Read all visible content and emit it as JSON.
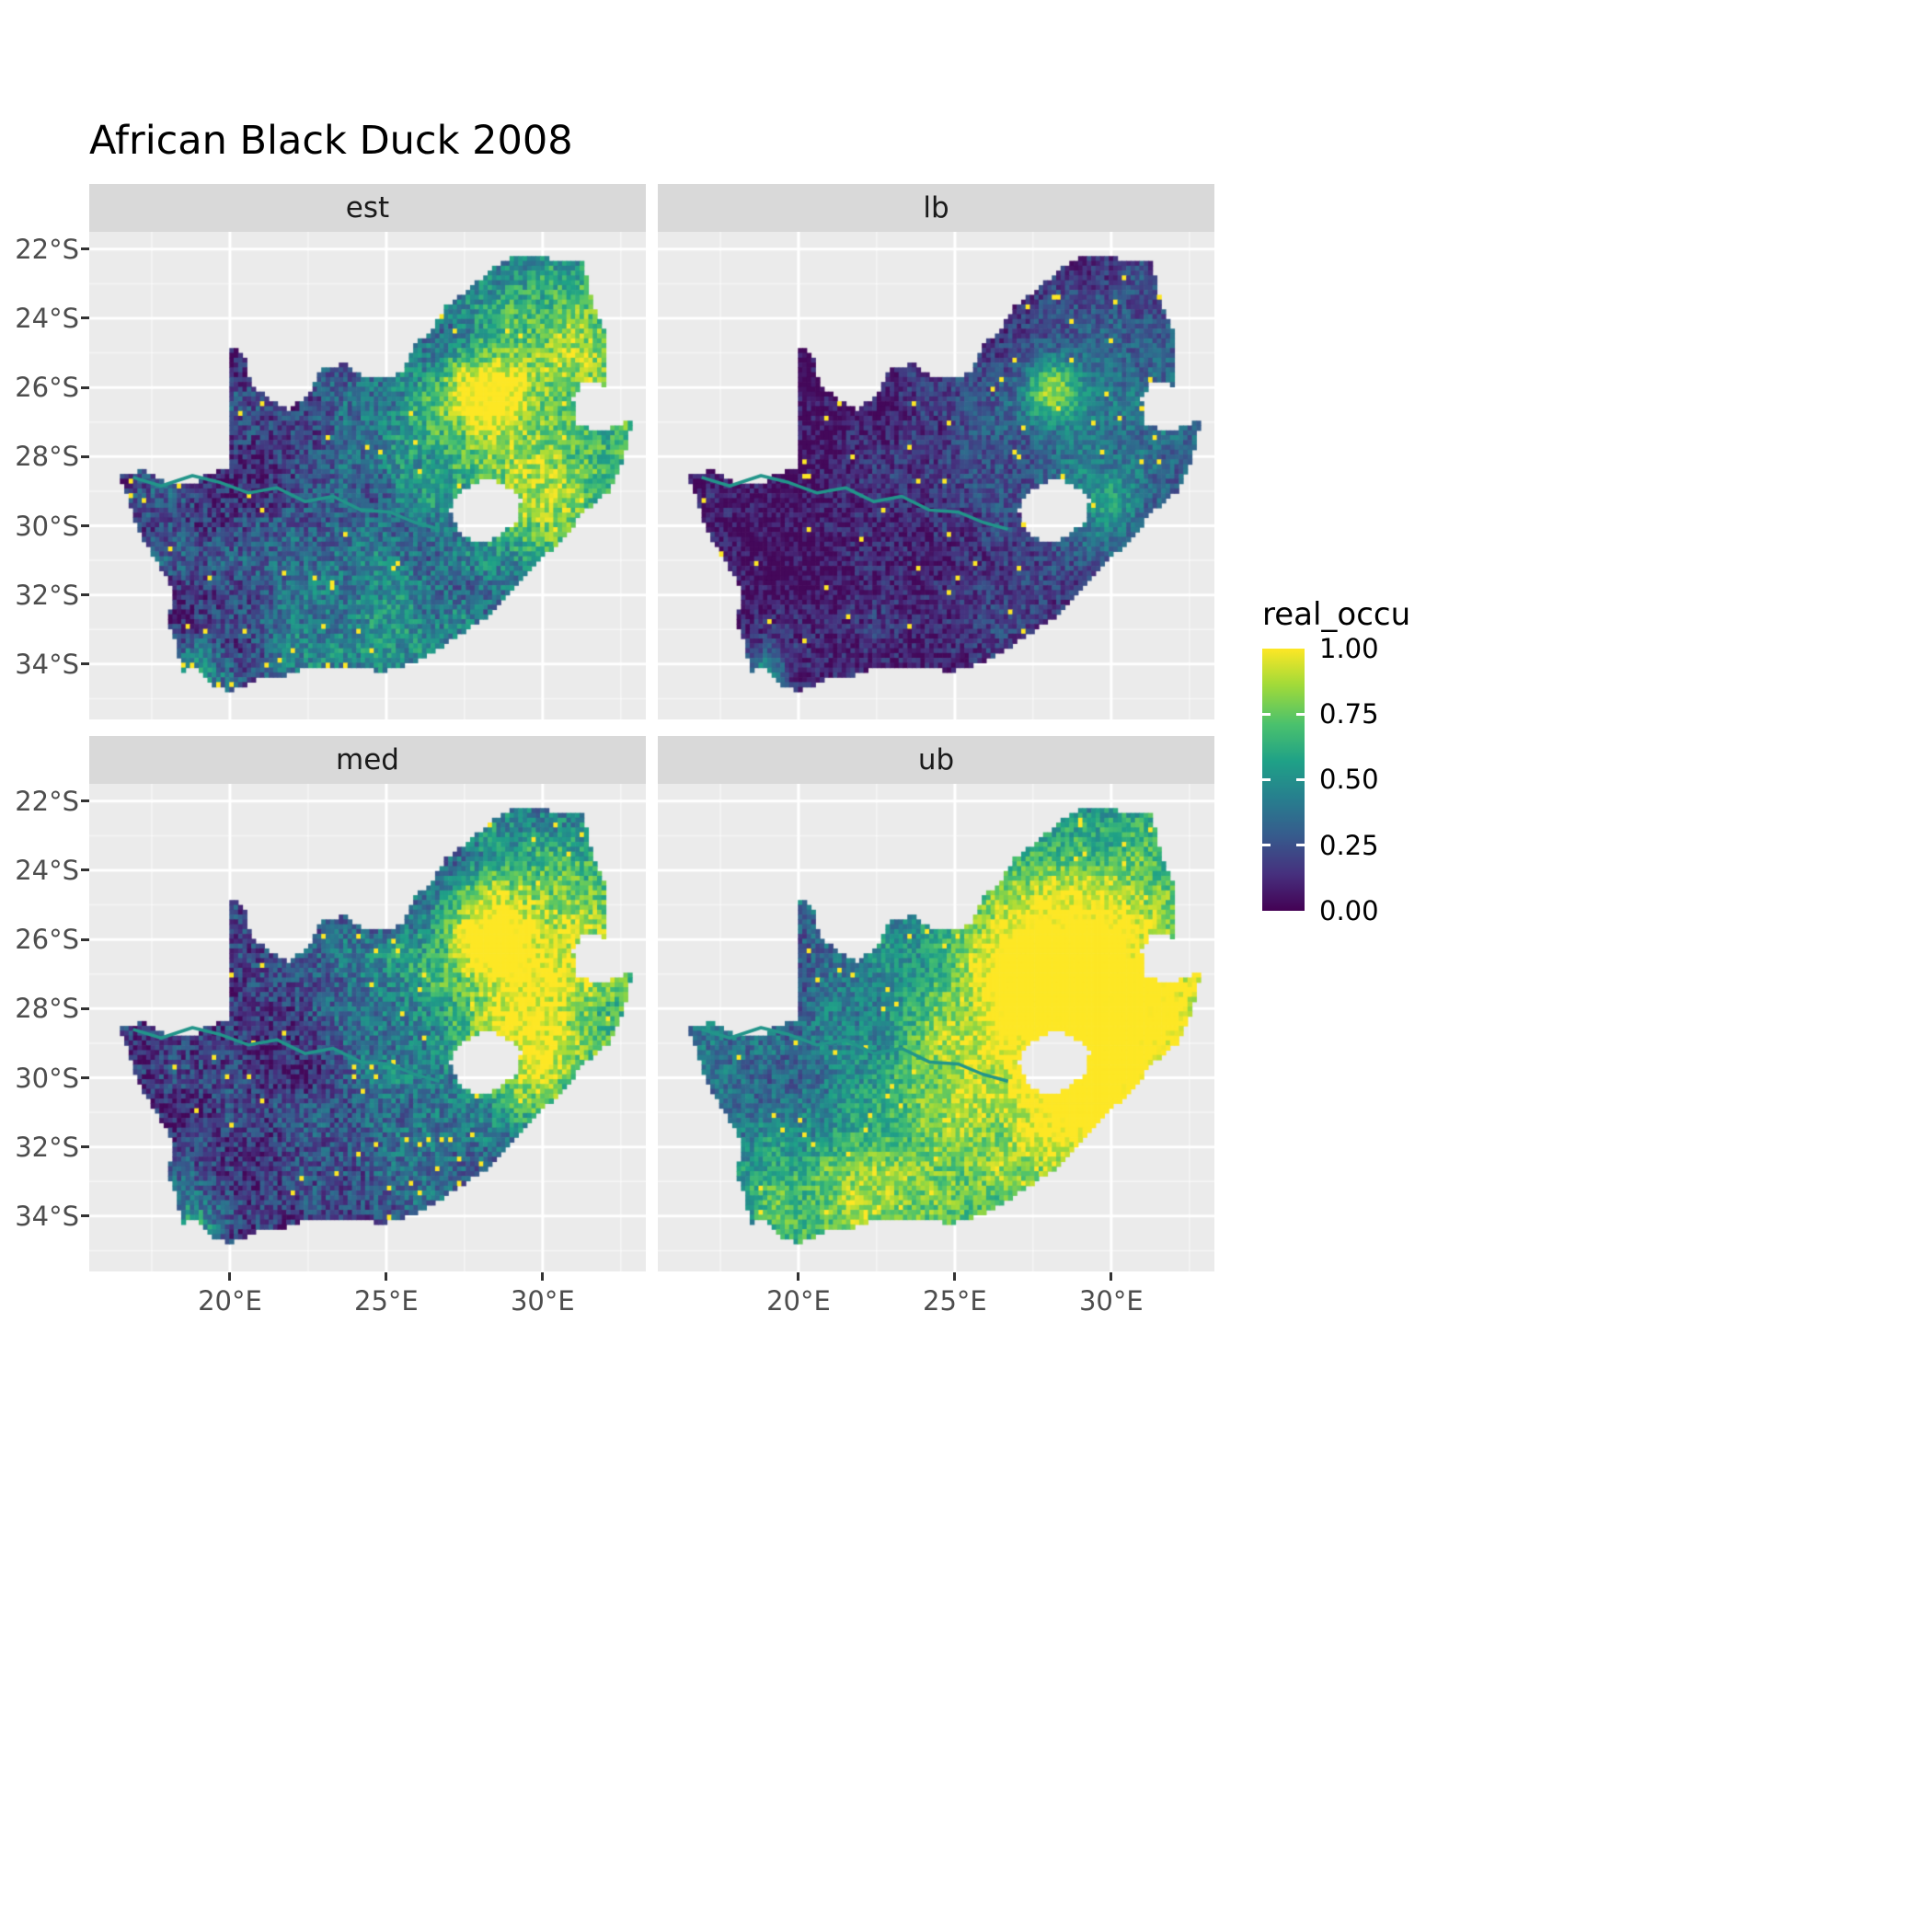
{
  "chart": {
    "title": "African Black Duck 2008",
    "facets": [
      {
        "label": "est"
      },
      {
        "label": "lb"
      },
      {
        "label": "med"
      },
      {
        "label": "ub"
      }
    ],
    "y_ticks": [
      "22°S",
      "24°S",
      "26°S",
      "28°S",
      "30°S",
      "32°S",
      "34°S"
    ],
    "x_ticks": [
      "20°E",
      "25°E",
      "30°E"
    ],
    "legend": {
      "title": "real_occu",
      "labels": [
        "1.00",
        "0.75",
        "0.50",
        "0.25",
        "0.00"
      ]
    }
  },
  "chart_data": {
    "type": "heatmap",
    "subtype": "faceted geographic raster map of species occupancy over South Africa",
    "title": "African Black Duck 2008",
    "region": "South Africa",
    "facets": [
      "est",
      "lb",
      "med",
      "ub"
    ],
    "legend_title": "real_occu",
    "value_range": [
      0,
      1
    ],
    "legend_ticks": [
      1.0,
      0.75,
      0.5,
      0.25,
      0.0
    ],
    "x_axis": {
      "label": "",
      "ticks_deg": [
        20,
        25,
        30
      ],
      "tick_labels": [
        "20°E",
        "25°E",
        "30°E"
      ],
      "range_deg": [
        15.5,
        33.3
      ]
    },
    "y_axis": {
      "label": "",
      "ticks_deg": [
        22,
        24,
        26,
        28,
        30,
        32,
        34
      ],
      "tick_labels": [
        "22°S",
        "24°S",
        "26°S",
        "28°S",
        "30°S",
        "32°S",
        "34°S"
      ],
      "range_deg": [
        -35.6,
        -21.5
      ]
    },
    "panel_background": "#EBEBEB",
    "gridline_color": "#FFFFFF",
    "strip_background": "#D9D9D9",
    "colormap": {
      "name": "viridis",
      "stops": [
        [
          0.0,
          "#440154"
        ],
        [
          0.14,
          "#46307e"
        ],
        [
          0.29,
          "#365c8d"
        ],
        [
          0.43,
          "#277f8e"
        ],
        [
          0.57,
          "#1fa187"
        ],
        [
          0.71,
          "#4ac16d"
        ],
        [
          0.86,
          "#a0da39"
        ],
        [
          1.0,
          "#fde725"
        ]
      ]
    },
    "facet_summaries": {
      "est": "moderate occupancy overall; high (yellow-green) in the north-east around Gauteng and east of Lesotho; dark (near 0) in the arid west; green band along the south coast",
      "lb": "lower bound: mostly near 0 (dark purple) with teal speckle in the north-east and isolated bright cells near Gauteng and the south-west cape",
      "med": "median: like est, moderate-to-high in the north-east, dark in the west interior",
      "ub": "upper bound: high (yellow) across most of eastern and southern South Africa; teal/blue in the west and north-west interior"
    },
    "outline_lonlat": [
      [
        16.45,
        -28.58
      ],
      [
        17.2,
        -28.4
      ],
      [
        17.9,
        -28.75
      ],
      [
        18.7,
        -28.85
      ],
      [
        19.3,
        -28.5
      ],
      [
        19.98,
        -28.3
      ],
      [
        19.98,
        -24.75
      ],
      [
        20.45,
        -25.1
      ],
      [
        20.65,
        -25.9
      ],
      [
        21.2,
        -26.3
      ],
      [
        21.9,
        -26.65
      ],
      [
        22.6,
        -26.1
      ],
      [
        22.9,
        -25.45
      ],
      [
        23.7,
        -25.3
      ],
      [
        24.3,
        -25.75
      ],
      [
        25.1,
        -25.75
      ],
      [
        25.6,
        -25.45
      ],
      [
        25.9,
        -24.75
      ],
      [
        26.5,
        -24.3
      ],
      [
        26.9,
        -23.65
      ],
      [
        27.6,
        -23.2
      ],
      [
        28.3,
        -22.6
      ],
      [
        29.1,
        -22.15
      ],
      [
        29.7,
        -22.15
      ],
      [
        30.35,
        -22.3
      ],
      [
        31.3,
        -22.35
      ],
      [
        31.6,
        -23.6
      ],
      [
        31.95,
        -24.3
      ],
      [
        32.05,
        -25.1
      ],
      [
        31.95,
        -25.95
      ],
      [
        31.3,
        -25.75
      ],
      [
        30.95,
        -26.35
      ],
      [
        31.1,
        -27.1
      ],
      [
        31.95,
        -27.3
      ],
      [
        32.9,
        -26.85
      ],
      [
        32.55,
        -28.2
      ],
      [
        32.15,
        -28.95
      ],
      [
        31.35,
        -29.55
      ],
      [
        30.65,
        -30.35
      ],
      [
        29.9,
        -31.0
      ],
      [
        29.15,
        -31.75
      ],
      [
        28.25,
        -32.6
      ],
      [
        27.4,
        -33.1
      ],
      [
        26.45,
        -33.7
      ],
      [
        25.65,
        -34.0
      ],
      [
        24.85,
        -34.2
      ],
      [
        24.0,
        -34.1
      ],
      [
        23.35,
        -34.1
      ],
      [
        22.55,
        -34.05
      ],
      [
        21.75,
        -34.35
      ],
      [
        20.9,
        -34.4
      ],
      [
        20.0,
        -34.8
      ],
      [
        19.35,
        -34.55
      ],
      [
        18.85,
        -34.05
      ],
      [
        18.45,
        -34.2
      ],
      [
        18.3,
        -33.45
      ],
      [
        18.0,
        -32.75
      ],
      [
        18.25,
        -32.0
      ],
      [
        17.85,
        -31.3
      ],
      [
        17.05,
        -30.1
      ],
      [
        16.75,
        -29.25
      ]
    ],
    "lesotho_hole_lonlat": [
      [
        27.0,
        -29.55
      ],
      [
        27.4,
        -28.95
      ],
      [
        28.1,
        -28.65
      ],
      [
        28.75,
        -28.75
      ],
      [
        29.3,
        -29.25
      ],
      [
        29.15,
        -29.9
      ],
      [
        28.6,
        -30.3
      ],
      [
        27.95,
        -30.55
      ],
      [
        27.35,
        -30.25
      ]
    ],
    "river_lonlat": [
      [
        16.9,
        -28.6
      ],
      [
        17.8,
        -28.85
      ],
      [
        18.8,
        -28.55
      ],
      [
        19.7,
        -28.75
      ],
      [
        20.6,
        -29.05
      ],
      [
        21.5,
        -28.9
      ],
      [
        22.4,
        -29.3
      ],
      [
        23.3,
        -29.15
      ],
      [
        24.2,
        -29.55
      ],
      [
        25.1,
        -29.6
      ],
      [
        25.9,
        -29.9
      ],
      [
        26.7,
        -30.1
      ]
    ],
    "fields": {
      "est": {
        "seed": 1,
        "base": 0.2,
        "neGain": 0.55,
        "neLon0": 21.0,
        "neLonSpan": 8.0,
        "neLatC": -27.0,
        "neLatSpan": 7.0,
        "smoothAmp": 0.38,
        "speckAmp": 0.34,
        "yellowProb": 0.012,
        "hotspots": [
          [
            28.05,
            -26.1,
            0.8,
            0.45
          ],
          [
            29.9,
            -29.5,
            1.2,
            0.4
          ],
          [
            30.8,
            -24.8,
            1.6,
            0.2
          ],
          [
            25.8,
            -33.6,
            1.4,
            0.25
          ],
          [
            22.4,
            -34.0,
            1.5,
            0.2
          ],
          [
            18.9,
            -34.2,
            0.7,
            0.45
          ]
        ]
      },
      "lb": {
        "seed": 2,
        "base": 0.07,
        "neGain": 0.3,
        "neLon0": 21.0,
        "neLonSpan": 8.0,
        "neLatC": -27.0,
        "neLatSpan": 7.0,
        "smoothAmp": 0.22,
        "speckAmp": 0.26,
        "yellowProb": 0.008,
        "hotspots": [
          [
            28.05,
            -26.1,
            0.6,
            0.55
          ],
          [
            29.9,
            -29.5,
            0.9,
            0.28
          ],
          [
            18.9,
            -34.2,
            0.5,
            0.35
          ],
          [
            25.8,
            -33.6,
            1.0,
            0.12
          ]
        ]
      },
      "med": {
        "seed": 3,
        "base": 0.16,
        "neGain": 0.6,
        "neLon0": 21.0,
        "neLonSpan": 8.0,
        "neLatC": -26.8,
        "neLatSpan": 7.2,
        "smoothAmp": 0.38,
        "speckAmp": 0.34,
        "yellowProb": 0.012,
        "hotspots": [
          [
            28.2,
            -25.9,
            1.0,
            0.5
          ],
          [
            29.9,
            -29.5,
            1.3,
            0.45
          ],
          [
            18.9,
            -34.2,
            0.7,
            0.4
          ],
          [
            25.8,
            -33.6,
            1.3,
            0.22
          ],
          [
            30.8,
            -24.8,
            1.6,
            0.2
          ]
        ]
      },
      "ub": {
        "seed": 4,
        "base": 0.34,
        "neGain": 0.62,
        "neLon0": 20.0,
        "neLonSpan": 7.0,
        "neLatC": -28.5,
        "neLatSpan": 9.0,
        "smoothAmp": 0.34,
        "speckAmp": 0.3,
        "yellowProb": 0.015,
        "hotspots": [
          [
            29.5,
            -29.5,
            2.5,
            0.35
          ],
          [
            28.5,
            -25.8,
            1.8,
            0.3
          ],
          [
            21.0,
            -34.1,
            1.8,
            0.35
          ],
          [
            19.2,
            -33.2,
            1.0,
            0.25
          ],
          [
            24.5,
            -33.9,
            2.0,
            0.2
          ]
        ]
      }
    }
  }
}
